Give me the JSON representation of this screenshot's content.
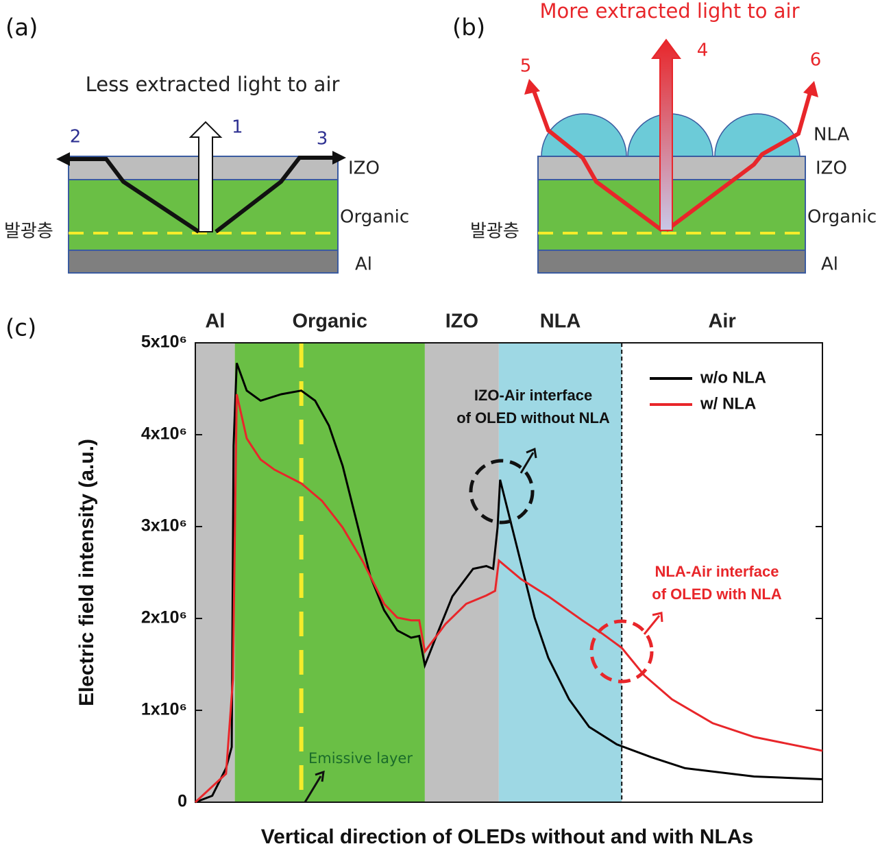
{
  "panel_a": {
    "label": "(a)",
    "caption": "Less extracted light to air",
    "rays": [
      "1",
      "2",
      "3"
    ],
    "layers": [
      "IZO",
      "Organic",
      "Al"
    ],
    "emitter": "발광층"
  },
  "panel_b": {
    "label": "(b)",
    "caption": "More extracted light to air",
    "rays": [
      "4",
      "5",
      "6"
    ],
    "layers": [
      "NLA",
      "IZO",
      "Organic",
      "Al"
    ],
    "emitter": "발광층"
  },
  "chart_data": {
    "type": "line",
    "panel_label": "(c)",
    "x_label": "Vertical direction of OLEDs without and with NLAs",
    "y_label": "Electric field intensity (a.u.)",
    "xlim": [
      0,
      100
    ],
    "ylim": [
      0,
      5000000
    ],
    "yticks": [
      {
        "value": 0,
        "label": "0"
      },
      {
        "value": 1000000,
        "label": "1x10⁶"
      },
      {
        "value": 2000000,
        "label": "2x10⁶"
      },
      {
        "value": 3000000,
        "label": "3x10⁶"
      },
      {
        "value": 4000000,
        "label": "4x10⁶"
      },
      {
        "value": 5000000,
        "label": "5x10⁶"
      }
    ],
    "regions": [
      {
        "label": "Al",
        "start": 0,
        "end": 6.3,
        "color": "#c0c0c0"
      },
      {
        "label": "Organic",
        "start": 6.3,
        "end": 36.6,
        "color": "#6abf45"
      },
      {
        "label": "IZO",
        "start": 36.6,
        "end": 48.4,
        "color": "#c0c0c0"
      },
      {
        "label": "NLA",
        "start": 48.4,
        "end": 68.0,
        "color": "#9ed8e4"
      },
      {
        "label": "Air",
        "start": 68.0,
        "end": 100,
        "color": "#ffffff"
      }
    ],
    "emissive_layer": {
      "x": 16.9,
      "label": "Emissive layer"
    },
    "annotations": [
      [
        "IZO-Air interface",
        "of OLED without NLA"
      ],
      [
        "NLA-Air interface",
        "of OLED with NLA"
      ]
    ],
    "series": [
      {
        "name": "w/o NLA",
        "color": "#000000",
        "x": [
          0,
          2.7,
          4.9,
          5.8,
          6.1,
          6.6,
          8.2,
          10.4,
          13.7,
          16.9,
          19.1,
          21.3,
          23.5,
          25.7,
          27.9,
          30.1,
          32.2,
          34.4,
          35.7,
          36.6,
          38.8,
          41.0,
          44.3,
          46.4,
          47.5,
          48.2,
          48.6,
          49.7,
          51.9,
          54.1,
          56.3,
          59.6,
          62.8,
          67.2,
          72.7,
          78.1,
          89.1,
          100
        ],
        "values": [
          0,
          70000,
          370000,
          600000,
          3880000,
          4780000,
          4480000,
          4370000,
          4440000,
          4480000,
          4370000,
          4100000,
          3660000,
          3060000,
          2460000,
          2090000,
          1870000,
          1790000,
          1810000,
          1490000,
          1870000,
          2240000,
          2540000,
          2570000,
          2540000,
          2990000,
          3510000,
          3210000,
          2610000,
          2010000,
          1570000,
          1120000,
          820000,
          630000,
          490000,
          370000,
          280000,
          250000
        ]
      },
      {
        "name": "w/ NLA",
        "color": "#e8262a",
        "x": [
          0,
          4.9,
          6.0,
          6.6,
          8.2,
          10.4,
          12.6,
          16.9,
          20.2,
          23.5,
          26.8,
          30.1,
          32.2,
          34.4,
          35.7,
          36.6,
          39.9,
          43.2,
          46.4,
          47.8,
          48.4,
          51.9,
          56.3,
          61.7,
          65.0,
          68.0,
          71.6,
          76.0,
          82.5,
          89.1,
          100
        ],
        "values": [
          0,
          310000,
          1340000,
          4440000,
          3960000,
          3730000,
          3620000,
          3470000,
          3280000,
          2990000,
          2610000,
          2160000,
          2010000,
          1980000,
          1980000,
          1640000,
          1940000,
          2160000,
          2250000,
          2300000,
          2630000,
          2430000,
          2240000,
          1980000,
          1830000,
          1680000,
          1380000,
          1120000,
          860000,
          710000,
          560000
        ]
      }
    ]
  }
}
